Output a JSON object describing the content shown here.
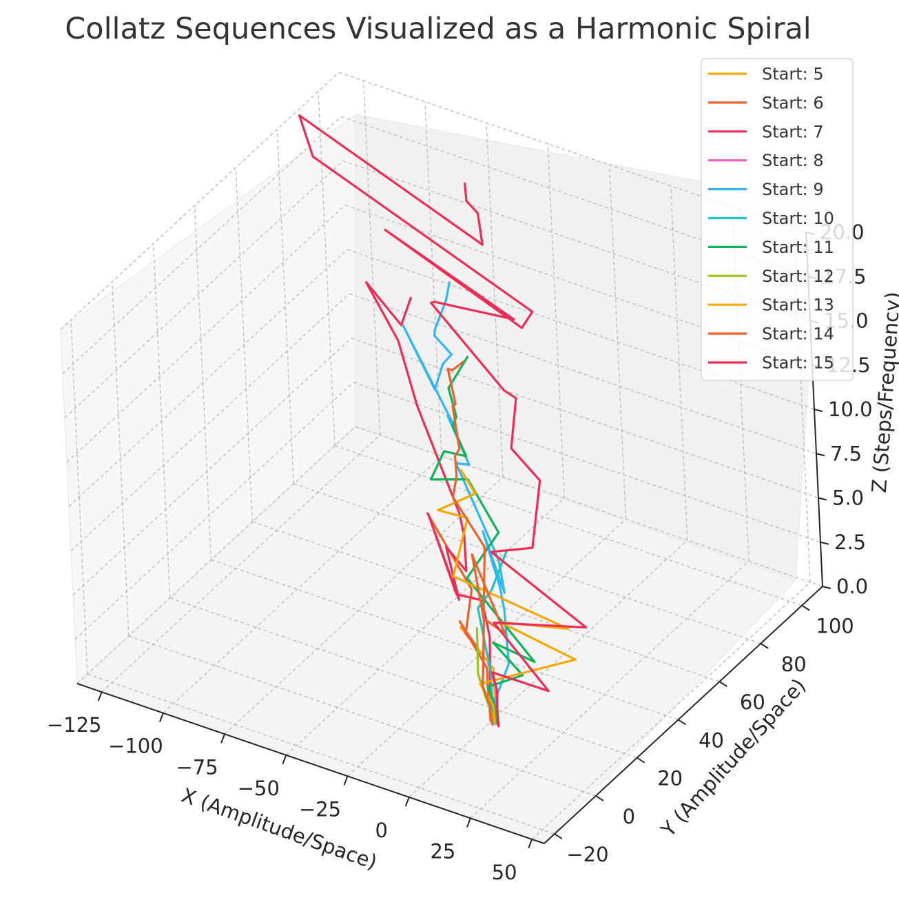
{
  "chart_data": {
    "type": "line3d",
    "title": "Collatz Sequences Visualized as a Harmonic Spiral",
    "xlabel": "X (Amplitude/Space)",
    "ylabel": "Y (Amplitude/Space)",
    "zlabel": "Z (Steps/Frequency)",
    "xlim": [
      -135,
      55
    ],
    "ylim": [
      -25,
      110
    ],
    "zlim": [
      0,
      20
    ],
    "xticks": [
      "−125",
      "−100",
      "−75",
      "−50",
      "−25",
      "0",
      "25",
      "50"
    ],
    "yticks": [
      "−20",
      "0",
      "20",
      "40",
      "60",
      "80",
      "100"
    ],
    "zticks": [
      "0.0",
      "2.5",
      "5.0",
      "7.5",
      "10.0",
      "12.5",
      "15.0",
      "17.5",
      "20.0"
    ],
    "grid": true,
    "legend_position": "top-right",
    "series": [
      {
        "name": "Start: 5",
        "color": "#f5a800",
        "points": [
          [
            2.2,
            14.3,
            0
          ],
          [
            2.1,
            14.6,
            1
          ],
          [
            1.9,
            15.0,
            2
          ],
          [
            1.6,
            15.3,
            3
          ],
          [
            -15.6,
            20.2,
            4
          ],
          [
            1.9,
            8.1,
            5
          ]
        ]
      },
      {
        "name": "Start: 6",
        "color": "#e8642c",
        "points": [
          [
            -0.3,
            14.9,
            0
          ],
          [
            -0.5,
            14.9,
            1
          ],
          [
            -0.7,
            14.8,
            2
          ],
          [
            -0.4,
            14.6,
            3
          ],
          [
            -17.7,
            22.3,
            4
          ],
          [
            2.7,
            7.3,
            5
          ],
          [
            -0.1,
            5.0,
            6
          ],
          [
            -6.7,
            16.2,
            7
          ],
          [
            -38.3,
            32.8,
            8
          ]
        ]
      },
      {
        "name": "Start: 7",
        "color": "#ee2d56",
        "points": [
          [
            0.5,
            15.1,
            0
          ],
          [
            0.2,
            15.2,
            1
          ],
          [
            -0.2,
            15.4,
            2
          ],
          [
            -2.6,
            18.6,
            3
          ],
          [
            -3.8,
            20.3,
            4
          ],
          [
            -11.9,
            26.6,
            5
          ],
          [
            -15.5,
            18.9,
            6
          ],
          [
            -43.9,
            39.4,
            7
          ],
          [
            -1.1,
            3.8,
            8
          ],
          [
            -16.0,
            15.7,
            9
          ],
          [
            3.7,
            2.4,
            10
          ],
          [
            -2.3,
            8.9,
            11
          ],
          [
            -5.0,
            10.2,
            12
          ],
          [
            -46.4,
            39.4,
            13
          ],
          [
            -66.8,
            55.0,
            14
          ],
          [
            -89.1,
            66.5,
            15
          ],
          [
            -59.0,
            48.0,
            16
          ],
          [
            -59.0,
            53.0,
            17
          ]
        ]
      },
      {
        "name": "Start: 8",
        "color": "#f45bc4",
        "points": [
          [
            1.6,
            13.6,
            0
          ],
          [
            2.4,
            14.8,
            1
          ],
          [
            2.6,
            14.9,
            2
          ],
          [
            -1.8,
            16.8,
            3
          ]
        ]
      },
      {
        "name": "Start: 9",
        "color": "#2fb7ee",
        "points": [
          [
            1.3,
            14.1,
            0
          ],
          [
            1.3,
            14.4,
            1
          ],
          [
            2.9,
            17.0,
            2
          ],
          [
            4.5,
            19.2,
            3
          ],
          [
            -8.3,
            32.7,
            4
          ],
          [
            -11.5,
            34.6,
            5
          ],
          [
            -27.9,
            46.5,
            6
          ],
          [
            4.2,
            19.1,
            7
          ],
          [
            -2.2,
            24.3,
            8
          ],
          [
            -39.9,
            49.0,
            9
          ],
          [
            -29.6,
            43.5,
            10
          ],
          [
            -45.9,
            52.8,
            11
          ],
          [
            -33.8,
            42.5,
            12
          ],
          [
            -76.1,
            68.1,
            13
          ],
          [
            -40.2,
            41.1,
            14
          ],
          [
            -40.1,
            45.2,
            15
          ],
          [
            -34.7,
            43.4,
            16
          ],
          [
            -39.9,
            41.7,
            17
          ],
          [
            -35.7,
            37.3,
            18
          ],
          [
            -35.9,
            43.4,
            19
          ],
          [
            -34.7,
            44.0,
            20
          ]
        ]
      },
      {
        "name": "Start: 10",
        "color": "#1cc6bb",
        "points": [
          [
            1.6,
            14.4,
            0
          ],
          [
            0.8,
            14.7,
            1
          ],
          [
            -5.2,
            21.6,
            2
          ],
          [
            -6.8,
            21.7,
            3
          ],
          [
            -16.6,
            29.8,
            4
          ],
          [
            -12.4,
            31.8,
            5
          ],
          [
            -14.6,
            42.2,
            6
          ]
        ]
      },
      {
        "name": "Start: 11",
        "color": "#10b25a",
        "points": [
          [
            2.6,
            14.7,
            0
          ],
          [
            2.4,
            14.5,
            1
          ],
          [
            -0.2,
            14.3,
            2
          ],
          [
            12.4,
            16.6,
            3
          ],
          [
            -1.0,
            18.6,
            4
          ],
          [
            23.5,
            9.9,
            5
          ],
          [
            -17.6,
            26.5,
            6
          ],
          [
            -16.9,
            41.4,
            7
          ],
          [
            -37.2,
            51.1,
            8
          ],
          [
            -42.2,
            39.5,
            9
          ],
          [
            -41.4,
            45.4,
            10
          ],
          [
            -27.3,
            39.7,
            11
          ],
          [
            -35.1,
            42.8,
            12
          ],
          [
            -31.0,
            40.2,
            13
          ],
          [
            -36.6,
            43.4,
            14
          ],
          [
            -35.1,
            51.2,
            15
          ]
        ]
      },
      {
        "name": "Start: 12",
        "color": "#96c31e",
        "points": [
          [
            1.7,
            14.9,
            0
          ],
          [
            -3.1,
            16.4,
            1
          ],
          [
            -7.3,
            18.0,
            2
          ],
          [
            -16.3,
            28.6,
            3
          ]
        ]
      },
      {
        "name": "Start: 13",
        "color": "#f5a800",
        "points": [
          [
            1.8,
            14.5,
            0
          ],
          [
            1.6,
            14.5,
            1
          ],
          [
            -3.5,
            14.4,
            2
          ],
          [
            23.0,
            29.5,
            3
          ],
          [
            -5.4,
            27.3,
            4
          ],
          [
            22.8,
            27.0,
            5
          ],
          [
            -22.2,
            25.4,
            6
          ],
          [
            -30.8,
            42.9,
            7
          ],
          [
            -36.2,
            35.4,
            8
          ],
          [
            -24.4,
            39.9,
            9
          ],
          [
            -30.4,
            40.4,
            10
          ]
        ]
      },
      {
        "name": "Start: 14",
        "color": "#e8642c",
        "points": [
          [
            0.9,
            14.1,
            0
          ],
          [
            0.6,
            14.0,
            1
          ],
          [
            -1.9,
            13.8,
            2
          ],
          [
            -1.6,
            14.1,
            3
          ],
          [
            -11.4,
            26.5,
            4
          ],
          [
            5.5,
            16.9,
            5
          ],
          [
            -23.7,
            36.2,
            6
          ],
          [
            6.2,
            6.6,
            7
          ],
          [
            -10.4,
            27.3,
            8
          ],
          [
            -29.9,
            35.6,
            9
          ],
          [
            -29.7,
            37.5,
            10
          ],
          [
            -30.6,
            38.2,
            11
          ],
          [
            -25.7,
            34.9,
            12
          ],
          [
            -35.6,
            43.8,
            13
          ],
          [
            -29.4,
            38.2,
            14
          ],
          [
            -37.1,
            44.1,
            15
          ],
          [
            -29.4,
            37.4,
            16
          ],
          [
            -22.9,
            35.4,
            17
          ]
        ]
      },
      {
        "name": "Start: 15",
        "color": "#ee2d56",
        "points": [
          [
            3.8,
            13.9,
            0
          ],
          [
            3.7,
            13.8,
            1
          ],
          [
            3.6,
            14.2,
            2
          ],
          [
            2.4,
            13.7,
            3
          ],
          [
            31.0,
            7.3,
            4
          ],
          [
            -1.2,
            19.6,
            5
          ],
          [
            33.6,
            23.2,
            6
          ],
          [
            -12.9,
            33.0,
            7
          ],
          [
            4.0,
            33.3,
            8
          ],
          [
            -9.5,
            53.4,
            9
          ],
          [
            -22.4,
            55.3,
            10
          ],
          [
            -31.2,
            68.5,
            11
          ],
          [
            -31.3,
            63.2,
            12
          ],
          [
            -75.2,
            80.5,
            13
          ],
          [
            -68.4,
            74.7,
            14
          ],
          [
            -33.4,
            71.7,
            15
          ],
          [
            -94.4,
            82.4,
            16
          ],
          [
            -16.4,
            56.1,
            17
          ],
          [
            -12.5,
            57.0,
            18
          ],
          [
            -121.6,
            81.0,
            19
          ],
          [
            -132.9,
            88.3,
            20
          ],
          [
            -31.1,
            56.1,
            21
          ],
          [
            -36.7,
            60.9,
            22
          ],
          [
            -38.0,
            57.4,
            23
          ],
          [
            -38.2,
            57.2,
            24
          ]
        ]
      }
    ]
  }
}
